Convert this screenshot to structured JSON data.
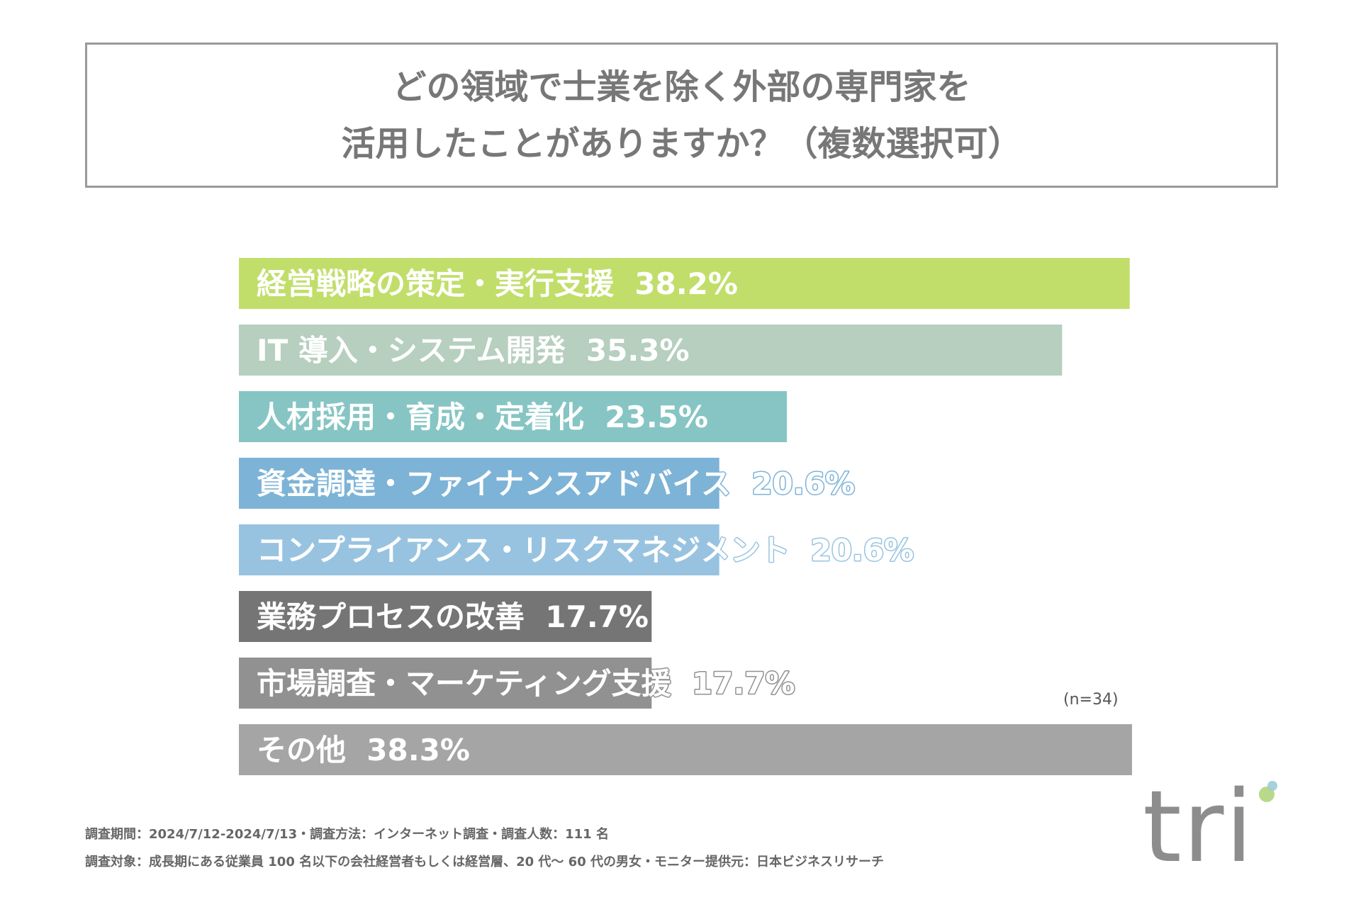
{
  "chart_data": {
    "type": "bar",
    "orientation": "horizontal",
    "title": [
      "どの領域で士業を除く外部の専門家を",
      "活用したことがありますか？（複数選択可）"
    ],
    "xlim": [
      0,
      38.3
    ],
    "categories": [
      "経営戦略の策定・実行支援",
      "IT 導入・システム開発",
      "人材採用・育成・定着化",
      "資金調達・ファイナンスアドバイス",
      "コンプライアンス・リスクマネジメント",
      "業務プロセスの改善",
      "市場調査・マーケティング支援",
      "その他"
    ],
    "values": [
      38.2,
      35.3,
      23.5,
      20.6,
      20.6,
      17.7,
      17.7,
      38.3
    ],
    "value_labels": [
      "38.2%",
      "35.3%",
      "23.5%",
      "20.6%",
      "20.6%",
      "17.7%",
      "17.7%",
      "38.3%"
    ],
    "colors": [
      "#c1de6a",
      "#b6cfbe",
      "#86c5c3",
      "#7db3d6",
      "#98c3e0",
      "#757575",
      "#919191",
      "#a5a5a5"
    ],
    "n_label": "(n=34)"
  },
  "footnotes": [
    "調査期間：2024/7/12-2024/7/13・調査方法：インターネット調査・調査人数：111 名",
    "調査対象：成長期にある従業員 100 名以下の会社経営者もしくは経営層、20 代〜 60 代の男女・モニター提供元：日本ビジネスリサーチ"
  ],
  "logo": {
    "text": "tri",
    "dot_color_a": "#b8d98a",
    "dot_color_b": "#9fcbd7"
  }
}
